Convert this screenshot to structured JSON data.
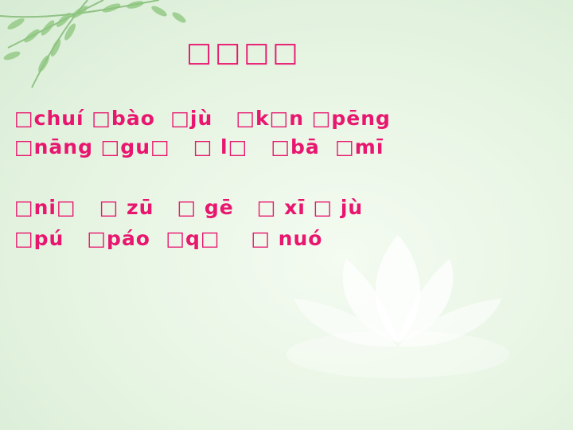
{
  "slide": {
    "title": "□□□□",
    "lines": [
      "□chuí □bào  □jù   □k□n □pēng",
      "□nāng □gu□   □ l□   □bā  □mī",
      "□ni□   □ zū   □ gē   □ xī □ jù",
      "□pú   □páo  □q□    □ nuó"
    ]
  },
  "colors": {
    "text_accent": "#e8166e",
    "background": "#e6f4e2"
  },
  "decorations": [
    "willow-leaves",
    "lotus-flower"
  ]
}
